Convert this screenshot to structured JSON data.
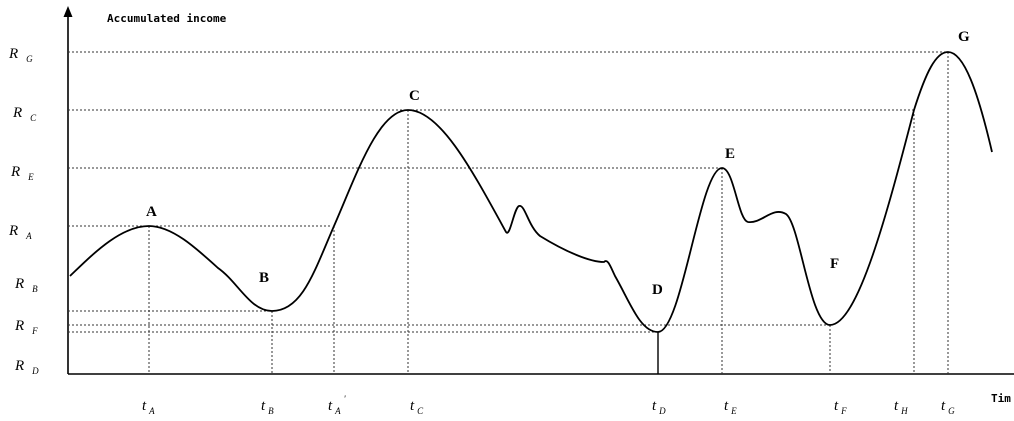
{
  "y_axis_title": "Accumulated income",
  "x_axis_title": "Tim",
  "levels": [
    {
      "id": "G",
      "main": "R",
      "sub": "G"
    },
    {
      "id": "C",
      "main": "R",
      "sub": "C"
    },
    {
      "id": "E",
      "main": "R",
      "sub": "E"
    },
    {
      "id": "A",
      "main": "R",
      "sub": "A"
    },
    {
      "id": "B",
      "main": "R",
      "sub": "B"
    },
    {
      "id": "F",
      "main": "R",
      "sub": "F"
    },
    {
      "id": "D",
      "main": "R",
      "sub": "D"
    }
  ],
  "times": [
    {
      "id": "A",
      "main": "t",
      "sub": "A",
      "sup": ""
    },
    {
      "id": "B",
      "main": "t",
      "sub": "B",
      "sup": ""
    },
    {
      "id": "A2",
      "main": "t",
      "sub": "A",
      "sup": "'"
    },
    {
      "id": "C",
      "main": "t",
      "sub": "C",
      "sup": ""
    },
    {
      "id": "D",
      "main": "t",
      "sub": "D",
      "sup": ""
    },
    {
      "id": "E",
      "main": "t",
      "sub": "E",
      "sup": ""
    },
    {
      "id": "F",
      "main": "t",
      "sub": "F",
      "sup": ""
    },
    {
      "id": "H",
      "main": "t",
      "sub": "H",
      "sup": ""
    },
    {
      "id": "G",
      "main": "t",
      "sub": "G",
      "sup": ""
    }
  ],
  "points": [
    "A",
    "B",
    "C",
    "D",
    "E",
    "F",
    "G"
  ]
}
